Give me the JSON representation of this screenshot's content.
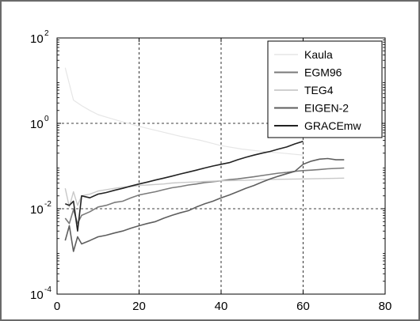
{
  "chart_data": {
    "type": "line",
    "title": "",
    "xlabel": "",
    "ylabel": "",
    "xlim": [
      0,
      80
    ],
    "ylim": [
      0.0001,
      100
    ],
    "y_scale": "log",
    "grid": true,
    "legend_position": "top-right",
    "x_ticks": [
      "0",
      "20",
      "40",
      "60",
      "80"
    ],
    "y_ticks": [
      {
        "base": "10",
        "exp": "-4",
        "value": 0.0001
      },
      {
        "base": "10",
        "exp": "-2",
        "value": 0.01
      },
      {
        "base": "10",
        "exp": "0",
        "value": 1
      },
      {
        "base": "10",
        "exp": "2",
        "value": 100
      }
    ],
    "series": [
      {
        "name": "Kaula",
        "color": "#e6e6e6",
        "width": 1.2,
        "x": [
          2,
          4,
          6,
          8,
          10,
          15,
          20,
          25,
          30,
          35,
          40,
          45,
          50,
          55,
          60
        ],
        "y": [
          20,
          3.5,
          2.6,
          2.0,
          1.6,
          1.15,
          0.85,
          0.65,
          0.5,
          0.4,
          0.3,
          0.25,
          0.22,
          0.2,
          0.18
        ]
      },
      {
        "name": "EGM96",
        "color": "#7a7a7a",
        "width": 1.6,
        "x": [
          2,
          3,
          4,
          5,
          6,
          8,
          10,
          12,
          14,
          16,
          18,
          20,
          22,
          24,
          26,
          28,
          30,
          32,
          34,
          36,
          38,
          40,
          42,
          44,
          46,
          48,
          50,
          52,
          54,
          56,
          58,
          60,
          62,
          64,
          66,
          68,
          70
        ],
        "y": [
          0.006,
          0.0045,
          0.0095,
          0.0045,
          0.007,
          0.0085,
          0.011,
          0.012,
          0.014,
          0.015,
          0.018,
          0.021,
          0.023,
          0.025,
          0.028,
          0.031,
          0.033,
          0.036,
          0.038,
          0.041,
          0.043,
          0.045,
          0.048,
          0.05,
          0.053,
          0.056,
          0.06,
          0.064,
          0.068,
          0.071,
          0.075,
          0.078,
          0.08,
          0.083,
          0.086,
          0.088,
          0.09
        ]
      },
      {
        "name": "TEG4",
        "color": "#c8c8c8",
        "width": 1.4,
        "x": [
          2,
          3,
          4,
          5,
          6,
          8,
          10,
          12,
          14,
          16,
          18,
          20,
          22,
          24,
          26,
          28,
          30,
          35,
          40,
          45,
          50,
          55,
          60,
          65,
          70
        ],
        "y": [
          0.03,
          0.011,
          0.025,
          0.012,
          0.02,
          0.022,
          0.026,
          0.028,
          0.03,
          0.032,
          0.033,
          0.035,
          0.036,
          0.037,
          0.038,
          0.04,
          0.041,
          0.043,
          0.045,
          0.046,
          0.048,
          0.049,
          0.05,
          0.051,
          0.052
        ]
      },
      {
        "name": "EIGEN-2",
        "color": "#5e5e5e",
        "width": 1.6,
        "x": [
          2,
          3,
          4,
          5,
          6,
          8,
          10,
          12,
          14,
          16,
          18,
          20,
          22,
          24,
          26,
          28,
          30,
          32,
          34,
          36,
          38,
          40,
          42,
          44,
          46,
          48,
          50,
          52,
          54,
          56,
          58,
          60,
          62,
          64,
          66,
          68,
          70
        ],
        "y": [
          0.0018,
          0.004,
          0.001,
          0.0022,
          0.0015,
          0.0018,
          0.0022,
          0.0024,
          0.0027,
          0.003,
          0.0035,
          0.004,
          0.0045,
          0.005,
          0.006,
          0.007,
          0.008,
          0.009,
          0.011,
          0.013,
          0.015,
          0.018,
          0.021,
          0.025,
          0.03,
          0.035,
          0.042,
          0.05,
          0.058,
          0.066,
          0.075,
          0.11,
          0.13,
          0.145,
          0.15,
          0.14,
          0.14
        ]
      },
      {
        "name": "GRACEmw",
        "color": "#222222",
        "width": 1.6,
        "x": [
          2,
          3,
          4,
          5,
          6,
          8,
          10,
          12,
          14,
          16,
          18,
          20,
          22,
          24,
          26,
          28,
          30,
          32,
          34,
          36,
          38,
          40,
          42,
          44,
          46,
          48,
          50,
          52,
          54,
          56,
          58,
          60
        ],
        "y": [
          0.013,
          0.012,
          0.015,
          0.003,
          0.02,
          0.018,
          0.022,
          0.024,
          0.027,
          0.03,
          0.034,
          0.038,
          0.042,
          0.047,
          0.052,
          0.058,
          0.065,
          0.072,
          0.08,
          0.09,
          0.1,
          0.11,
          0.12,
          0.14,
          0.16,
          0.18,
          0.2,
          0.22,
          0.25,
          0.28,
          0.33,
          0.38
        ]
      }
    ]
  }
}
